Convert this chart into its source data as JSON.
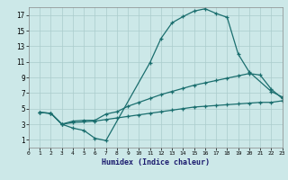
{
  "xlabel": "Humidex (Indice chaleur)",
  "xlim": [
    0,
    23
  ],
  "ylim": [
    0,
    18
  ],
  "xticks": [
    0,
    1,
    2,
    3,
    4,
    5,
    6,
    7,
    8,
    9,
    10,
    11,
    12,
    13,
    14,
    15,
    16,
    17,
    18,
    19,
    20,
    21,
    22,
    23
  ],
  "yticks": [
    1,
    3,
    5,
    7,
    9,
    11,
    13,
    15,
    17
  ],
  "background_color": "#cce8e8",
  "grid_color": "#aacccc",
  "line_color": "#1a6e6e",
  "line1_x": [
    1,
    2,
    3,
    4,
    5,
    6,
    7,
    11,
    12,
    13,
    14,
    15,
    16,
    17,
    18,
    19,
    20,
    22,
    23
  ],
  "line1_y": [
    4.5,
    4.4,
    3.0,
    2.5,
    2.2,
    1.2,
    0.9,
    10.9,
    14.0,
    16.0,
    16.8,
    17.5,
    17.8,
    17.2,
    16.7,
    12.0,
    9.7,
    7.2,
    6.5
  ],
  "line2_x": [
    1,
    2,
    3,
    4,
    5,
    6,
    7,
    8,
    9,
    10,
    11,
    12,
    13,
    14,
    15,
    16,
    17,
    18,
    19,
    20,
    21,
    22,
    23
  ],
  "line2_y": [
    4.5,
    4.4,
    3.0,
    3.4,
    3.5,
    3.5,
    4.3,
    4.6,
    5.3,
    5.8,
    6.3,
    6.8,
    7.2,
    7.6,
    8.0,
    8.3,
    8.6,
    8.9,
    9.2,
    9.5,
    9.3,
    7.5,
    6.3
  ],
  "line3_x": [
    1,
    2,
    3,
    4,
    5,
    6,
    7,
    8,
    9,
    10,
    11,
    12,
    13,
    14,
    15,
    16,
    17,
    18,
    19,
    20,
    21,
    22,
    23
  ],
  "line3_y": [
    4.5,
    4.4,
    3.0,
    3.2,
    3.3,
    3.4,
    3.6,
    3.8,
    4.0,
    4.2,
    4.4,
    4.6,
    4.8,
    5.0,
    5.2,
    5.3,
    5.4,
    5.5,
    5.6,
    5.7,
    5.8,
    5.8,
    6.0
  ]
}
